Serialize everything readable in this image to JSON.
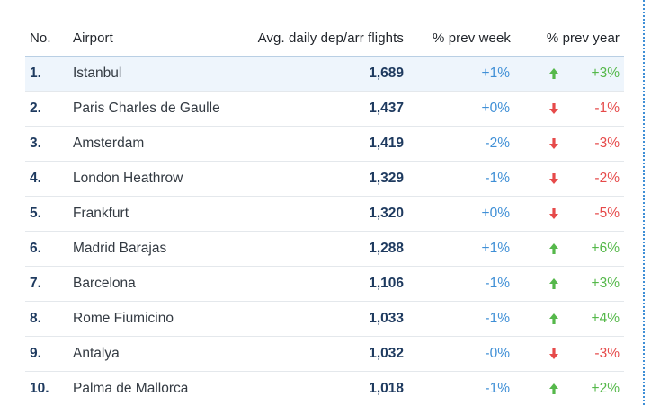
{
  "colors": {
    "up": "#55b84a",
    "down": "#e64a4a",
    "week": "#3f8fd6",
    "shaded_row": "#eef5fc"
  },
  "headers": {
    "no": "No.",
    "airport": "Airport",
    "flights": "Avg. daily dep/arr flights",
    "prev_week": "% prev week",
    "prev_year": "% prev year"
  },
  "rows": [
    {
      "no": "1.",
      "airport": "Istanbul",
      "flights": "1,689",
      "prev_week": "+1%",
      "trend": "up",
      "trend_icon": "arrow-up-icon",
      "prev_year": "+3%"
    },
    {
      "no": "2.",
      "airport": "Paris Charles de Gaulle",
      "flights": "1,437",
      "prev_week": "+0%",
      "trend": "down",
      "trend_icon": "arrow-down-icon",
      "prev_year": "-1%"
    },
    {
      "no": "3.",
      "airport": "Amsterdam",
      "flights": "1,419",
      "prev_week": "-2%",
      "trend": "down",
      "trend_icon": "arrow-down-icon",
      "prev_year": "-3%"
    },
    {
      "no": "4.",
      "airport": "London Heathrow",
      "flights": "1,329",
      "prev_week": "-1%",
      "trend": "down",
      "trend_icon": "arrow-down-icon",
      "prev_year": "-2%"
    },
    {
      "no": "5.",
      "airport": "Frankfurt",
      "flights": "1,320",
      "prev_week": "+0%",
      "trend": "down",
      "trend_icon": "arrow-down-icon",
      "prev_year": "-5%"
    },
    {
      "no": "6.",
      "airport": "Madrid Barajas",
      "flights": "1,288",
      "prev_week": "+1%",
      "trend": "up",
      "trend_icon": "arrow-up-icon",
      "prev_year": "+6%"
    },
    {
      "no": "7.",
      "airport": "Barcelona",
      "flights": "1,106",
      "prev_week": "-1%",
      "trend": "up",
      "trend_icon": "arrow-up-icon",
      "prev_year": "+3%"
    },
    {
      "no": "8.",
      "airport": "Rome Fiumicino",
      "flights": "1,033",
      "prev_week": "-1%",
      "trend": "up",
      "trend_icon": "arrow-up-icon",
      "prev_year": "+4%"
    },
    {
      "no": "9.",
      "airport": "Antalya",
      "flights": "1,032",
      "prev_week": "-0%",
      "trend": "down",
      "trend_icon": "arrow-down-icon",
      "prev_year": "-3%"
    },
    {
      "no": "10.",
      "airport": "Palma de Mallorca",
      "flights": "1,018",
      "prev_week": "-1%",
      "trend": "up",
      "trend_icon": "arrow-up-icon",
      "prev_year": "+2%"
    }
  ]
}
